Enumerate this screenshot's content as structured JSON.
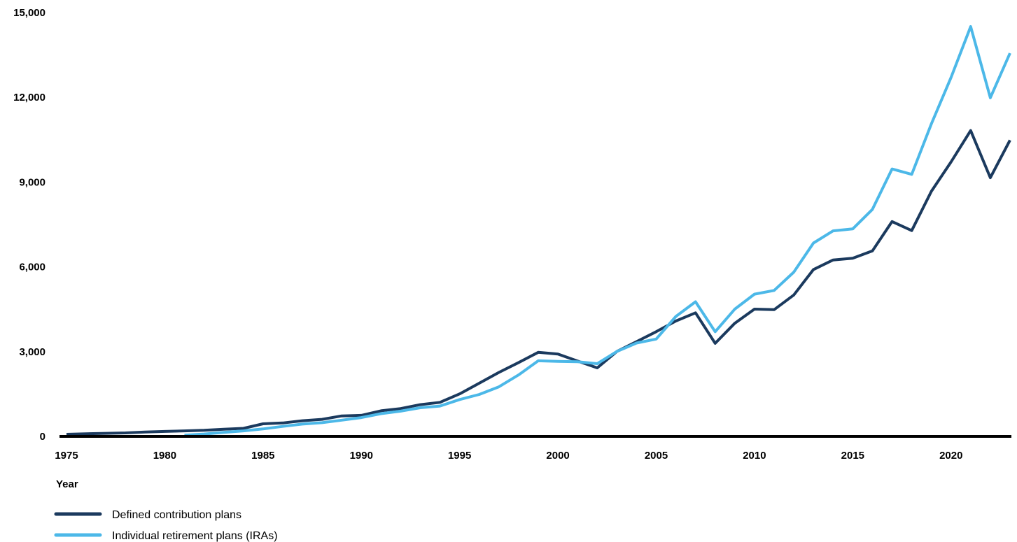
{
  "chart_data": {
    "type": "line",
    "title": "",
    "xlabel": "Year",
    "ylabel": "",
    "xlim": [
      1975,
      2023
    ],
    "ylim": [
      0,
      15000
    ],
    "x_ticks": [
      "1975",
      "1980",
      "1985",
      "1990",
      "1995",
      "2000",
      "2005",
      "2010",
      "2015",
      "2020"
    ],
    "y_ticks": [
      "0",
      "3,000",
      "6,000",
      "9,000",
      "12,000",
      "15,000"
    ],
    "grid": false,
    "legend_position": "bottom-left",
    "series": [
      {
        "name": "Defined contribution plans",
        "color": "#1b3a5e",
        "x": [
          1975,
          1976,
          1977,
          1978,
          1979,
          1980,
          1981,
          1982,
          1983,
          1984,
          1985,
          1986,
          1987,
          1988,
          1989,
          1990,
          1991,
          1992,
          1993,
          1994,
          1995,
          1996,
          1997,
          1998,
          1999,
          2000,
          2001,
          2002,
          2003,
          2004,
          2005,
          2006,
          2007,
          2008,
          2009,
          2010,
          2011,
          2012,
          2013,
          2014,
          2015,
          2016,
          2017,
          2018,
          2019,
          2020,
          2021,
          2022,
          2023
        ],
        "values": [
          50,
          70,
          85,
          100,
          130,
          150,
          170,
          190,
          230,
          260,
          420,
          450,
          530,
          580,
          700,
          720,
          880,
          960,
          1100,
          1180,
          1480,
          1860,
          2240,
          2590,
          2950,
          2890,
          2640,
          2400,
          2980,
          3330,
          3680,
          4060,
          4350,
          3270,
          3980,
          4480,
          4460,
          4980,
          5880,
          6220,
          6280,
          6540,
          7580,
          7260,
          8650,
          9690,
          10800,
          9130,
          10460
        ]
      },
      {
        "name": "Individual retirement plans (IRAs)",
        "color": "#4cb8e8",
        "x": [
          1981,
          1982,
          1983,
          1984,
          1985,
          1986,
          1987,
          1988,
          1989,
          1990,
          1991,
          1992,
          1993,
          1994,
          1995,
          1996,
          1997,
          1998,
          1999,
          2000,
          2001,
          2002,
          2003,
          2004,
          2005,
          2006,
          2007,
          2008,
          2009,
          2010,
          2011,
          2012,
          2013,
          2014,
          2015,
          2016,
          2017,
          2018,
          2019,
          2020,
          2021,
          2022,
          2023
        ],
        "values": [
          20,
          60,
          120,
          170,
          240,
          330,
          410,
          460,
          550,
          640,
          780,
          870,
          990,
          1050,
          1280,
          1460,
          1730,
          2150,
          2650,
          2630,
          2620,
          2550,
          2980,
          3280,
          3420,
          4220,
          4740,
          3680,
          4480,
          5010,
          5140,
          5790,
          6820,
          7250,
          7320,
          8010,
          9440,
          9250,
          11040,
          12680,
          14480,
          11960,
          13540
        ]
      }
    ]
  }
}
